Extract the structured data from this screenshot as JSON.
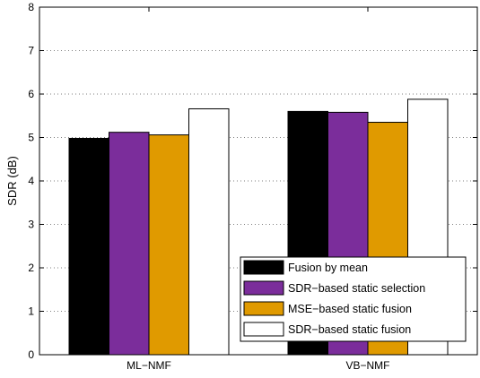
{
  "chart_data": {
    "type": "bar",
    "ylabel": "SDR (dB)",
    "xlabel": "",
    "ylim": [
      0,
      8
    ],
    "yticks": [
      "0",
      "1",
      "2",
      "3",
      "4",
      "5",
      "6",
      "7",
      "8"
    ],
    "categories": [
      "ML−NMF",
      "VB−NMF"
    ],
    "grid": "dotted",
    "legend_position": "bottom-right",
    "series": [
      {
        "name": "Fusion by mean",
        "color": "#000000",
        "values": [
          4.98,
          5.6
        ]
      },
      {
        "name": "SDR−based static selection",
        "color": "#7b2d9b",
        "values": [
          5.12,
          5.58
        ]
      },
      {
        "name": "MSE−based static fusion",
        "color": "#e09a00",
        "values": [
          5.06,
          5.35
        ]
      },
      {
        "name": "SDR−based static fusion",
        "color": "#ffffff",
        "values": [
          5.66,
          5.88
        ]
      }
    ]
  }
}
